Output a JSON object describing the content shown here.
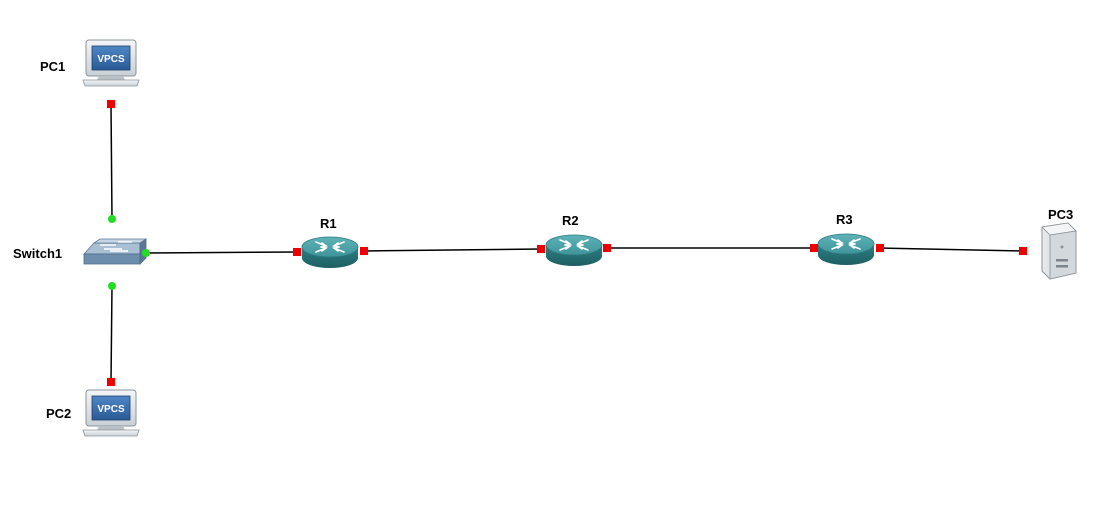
{
  "colors": {
    "link": "#000000",
    "port_up": "#22dd22",
    "port_down": "#ee0000",
    "router_body": "#2f8a8f",
    "switch_body": "#7f9cb8",
    "background": "#ffffff"
  },
  "nodes": {
    "pc1": {
      "label": "PC1",
      "type": "vpcs",
      "screen_text": "VPCS",
      "icon": "computer-icon"
    },
    "pc2": {
      "label": "PC2",
      "type": "vpcs",
      "screen_text": "VPCS",
      "icon": "computer-icon"
    },
    "pc3": {
      "label": "PC3",
      "type": "server",
      "icon": "server-tower-icon"
    },
    "switch1": {
      "label": "Switch1",
      "type": "ethernet-switch",
      "icon": "switch-icon"
    },
    "r1": {
      "label": "R1",
      "type": "router",
      "icon": "router-icon"
    },
    "r2": {
      "label": "R2",
      "type": "router",
      "icon": "router-icon"
    },
    "r3": {
      "label": "R3",
      "type": "router",
      "icon": "router-icon"
    }
  },
  "links": [
    {
      "from": "pc1",
      "to": "switch1",
      "status_from": "down",
      "status_to": "up"
    },
    {
      "from": "pc2",
      "to": "switch1",
      "status_from": "down",
      "status_to": "up"
    },
    {
      "from": "switch1",
      "to": "r1",
      "status_from": "up",
      "status_to": "down"
    },
    {
      "from": "r1",
      "to": "r2",
      "status_from": "down",
      "status_to": "down"
    },
    {
      "from": "r2",
      "to": "r3",
      "status_from": "down",
      "status_to": "down"
    },
    {
      "from": "r3",
      "to": "pc3",
      "status_from": "down",
      "status_to": "down"
    }
  ]
}
